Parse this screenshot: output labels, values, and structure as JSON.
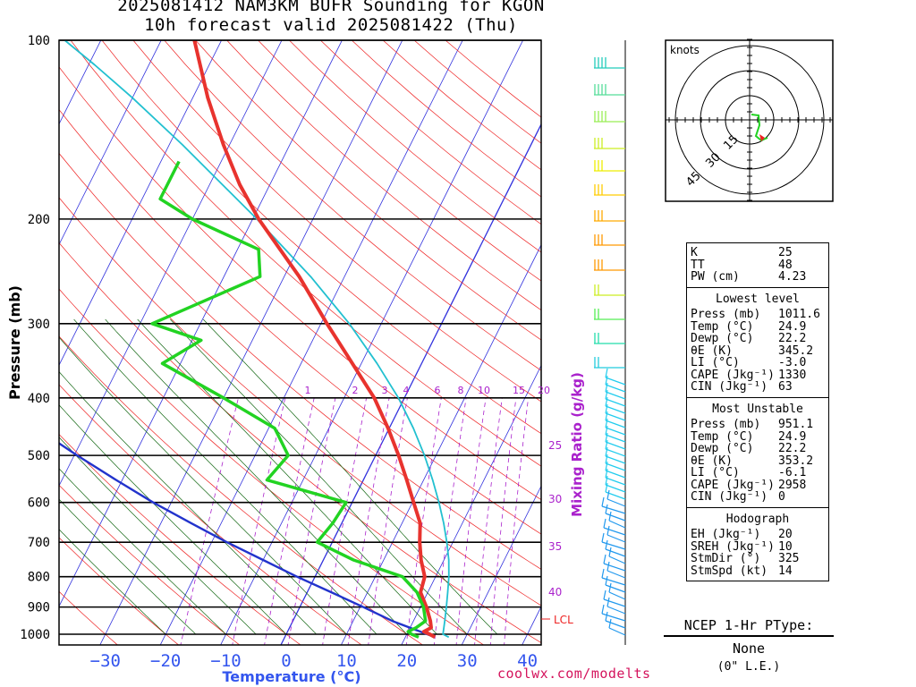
{
  "title": {
    "line1": "2025081412 NAM3KM BUFR Sounding for KGON",
    "line2": "10h forecast valid 2025081422 (Thu)"
  },
  "colors": {
    "temperature": "#e8332e",
    "dewpoint": "#22d322",
    "isotherm": "#3333dd",
    "dry_adiabat": "#ee2222",
    "moist_adiabat": "#116611",
    "mixing_ratio": "#aa22cc",
    "parcel": "#2233cc",
    "virtual_temp": "#22c0d0",
    "xlabel": "#3355ee",
    "mixing_label": "#aa22cc",
    "credit": "#d4135c"
  },
  "chart_data": {
    "type": "line",
    "chart_kind": "skew-t log-p sounding",
    "xlabel": "Temperature (°C)",
    "ylabel": "Pressure (mb)",
    "x_ticks": [
      -30,
      -20,
      -10,
      0,
      10,
      20,
      30,
      40
    ],
    "y_ticks": [
      100,
      200,
      300,
      400,
      500,
      600,
      700,
      800,
      900,
      1000
    ],
    "y_scale": "log",
    "mixing_ratio_label": "Mixing Ratio (g/kg)",
    "mixing_ratio_top_labels": [
      "1",
      "2",
      "3",
      "4",
      "6",
      "8",
      "10",
      "15",
      "20"
    ],
    "mixing_ratio_side_labels": [
      "25",
      "30",
      "35",
      "40"
    ],
    "lcl_label": "LCL",
    "series": [
      {
        "name": "Temperature",
        "points": [
          [
            1011.6,
            24.9
          ],
          [
            1000,
            23.8
          ],
          [
            990,
            22.6
          ],
          [
            975,
            23.5
          ],
          [
            950,
            22.8
          ],
          [
            900,
            21.0
          ],
          [
            850,
            18.8
          ],
          [
            800,
            18.2
          ],
          [
            750,
            16.2
          ],
          [
            700,
            14.5
          ],
          [
            650,
            13.0
          ],
          [
            600,
            10.2
          ],
          [
            550,
            7.2
          ],
          [
            500,
            3.8
          ],
          [
            450,
            -0.2
          ],
          [
            400,
            -5.0
          ],
          [
            350,
            -11.5
          ],
          [
            300,
            -19.0
          ],
          [
            250,
            -27.5
          ],
          [
            200,
            -39.0
          ],
          [
            175,
            -45.0
          ],
          [
            150,
            -51.0
          ],
          [
            125,
            -57.5
          ],
          [
            110,
            -61.5
          ],
          [
            100,
            -64.5
          ]
        ]
      },
      {
        "name": "Dewpoint",
        "points": [
          [
            1011.6,
            22.2
          ],
          [
            1000,
            20.8
          ],
          [
            990,
            20.0
          ],
          [
            975,
            21.0
          ],
          [
            950,
            22.0
          ],
          [
            900,
            20.5
          ],
          [
            850,
            18.2
          ],
          [
            800,
            14.5
          ],
          [
            750,
            5.0
          ],
          [
            700,
            -2.5
          ],
          [
            650,
            -1.5
          ],
          [
            600,
            -1.0
          ],
          [
            550,
            -16.0
          ],
          [
            500,
            -14.5
          ],
          [
            450,
            -19.0
          ],
          [
            400,
            -30.0
          ],
          [
            350,
            -43.0
          ],
          [
            320,
            -38.5
          ],
          [
            300,
            -48.0
          ],
          [
            250,
            -34.0
          ],
          [
            225,
            -36.5
          ],
          [
            200,
            -50.0
          ],
          [
            185,
            -57.0
          ],
          [
            160,
            -57.0
          ]
        ]
      },
      {
        "name": "Virtual Temperature",
        "points": [
          [
            1011.6,
            27.2
          ],
          [
            1000,
            26.0
          ],
          [
            950,
            25.2
          ],
          [
            900,
            24.3
          ],
          [
            850,
            23.3
          ],
          [
            800,
            22.2
          ],
          [
            750,
            20.8
          ],
          [
            700,
            19.0
          ],
          [
            650,
            16.9
          ],
          [
            600,
            14.4
          ],
          [
            550,
            11.5
          ],
          [
            500,
            8.1
          ],
          [
            450,
            4.0
          ],
          [
            400,
            -1.0
          ],
          [
            350,
            -7.4
          ],
          [
            300,
            -15.3
          ],
          [
            250,
            -25.6
          ],
          [
            200,
            -39.3
          ],
          [
            150,
            -57.8
          ],
          [
            125,
            -70.0
          ],
          [
            110,
            -79.0
          ],
          [
            100,
            -86.0
          ]
        ]
      },
      {
        "name": "Parcel",
        "points": [
          [
            1011.6,
            24.9
          ],
          [
            950,
            16.5
          ],
          [
            900,
            10.5
          ],
          [
            850,
            4.0
          ],
          [
            800,
            -3.0
          ],
          [
            750,
            -10.0
          ],
          [
            700,
            -17.5
          ],
          [
            650,
            -25.0
          ],
          [
            600,
            -33.0
          ],
          [
            550,
            -41.0
          ],
          [
            500,
            -49.5
          ],
          [
            450,
            -58.5
          ],
          [
            400,
            -68.5
          ],
          [
            350,
            -79.0
          ],
          [
            300,
            -91.0
          ],
          [
            280,
            -96.0
          ]
        ]
      }
    ]
  },
  "hodograph": {
    "units_label": "knots",
    "ring_labels": [
      "15",
      "30",
      "45"
    ]
  },
  "indices": {
    "top": [
      {
        "label": "K",
        "value": "25"
      },
      {
        "label": "TT",
        "value": "48"
      },
      {
        "label": "PW (cm)",
        "value": "4.23"
      }
    ],
    "lowest_level": {
      "title": "Lowest level",
      "rows": [
        {
          "label": "Press (mb)",
          "value": "1011.6"
        },
        {
          "label": "Temp (°C)",
          "value": "24.9"
        },
        {
          "label": "Dewp (°C)",
          "value": "22.2"
        },
        {
          "label": "θE (K)",
          "value": "345.2"
        },
        {
          "label": "LI (°C)",
          "value": "-3.0"
        },
        {
          "label": "CAPE (Jkg⁻¹)",
          "value": "1330"
        },
        {
          "label": "CIN (Jkg⁻¹)",
          "value": "63"
        }
      ]
    },
    "most_unstable": {
      "title": "Most Unstable",
      "rows": [
        {
          "label": "Press (mb)",
          "value": "951.1"
        },
        {
          "label": "Temp (°C)",
          "value": "24.9"
        },
        {
          "label": "Dewp (°C)",
          "value": "22.2"
        },
        {
          "label": "θE (K)",
          "value": "353.2"
        },
        {
          "label": "LI (°C)",
          "value": "-6.1"
        },
        {
          "label": "CAPE (Jkg⁻¹)",
          "value": "2958"
        },
        {
          "label": "CIN (Jkg⁻¹)",
          "value": "0"
        }
      ]
    },
    "hodograph": {
      "title": "Hodograph",
      "rows": [
        {
          "label": "EH (Jkg⁻¹)",
          "value": "20"
        },
        {
          "label": "SREH (Jkg⁻¹)",
          "value": "10"
        },
        {
          "label": "StmDir (°)",
          "value": "325"
        },
        {
          "label": "StmSpd (kt)",
          "value": "14"
        }
      ]
    }
  },
  "ptype": {
    "header": "NCEP 1-Hr PType:",
    "value": "None",
    "note": "(0\" L.E.)"
  },
  "credit": "coolwx.com/modelts"
}
